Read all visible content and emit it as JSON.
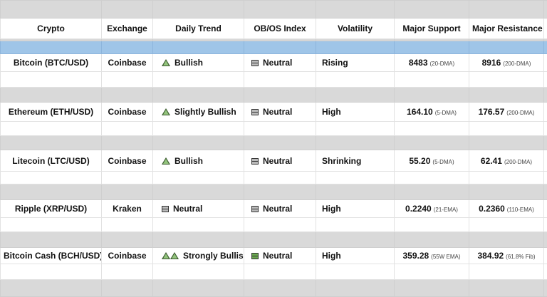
{
  "headers": [
    "Crypto",
    "Exchange",
    "Daily Trend",
    "OB/OS Index",
    "Volatility",
    "Major Support",
    "Major Resistance"
  ],
  "rows": [
    {
      "crypto": "Bitcoin (BTC/USD)",
      "exchange": "Coinbase",
      "trend": "Bullish",
      "trend_icon": "triangle-up-icon",
      "obos": "Neutral",
      "volatility": "Rising",
      "support": "8483",
      "support_note": "(20-DMA)",
      "resistance": "8916",
      "resistance_note": "(200-DMA)"
    },
    {
      "crypto": "Ethereum (ETH/USD)",
      "exchange": "Coinbase",
      "trend": "Slightly Bullish",
      "trend_icon": "triangle-up-icon",
      "obos": "Neutral",
      "volatility": "High",
      "support": "164.10",
      "support_note": "(5-DMA)",
      "resistance": "176.57",
      "resistance_note": "(200-DMA)"
    },
    {
      "crypto": "Litecoin (LTC/USD)",
      "exchange": "Coinbase",
      "trend": "Bullish",
      "trend_icon": "triangle-up-icon",
      "obos": "Neutral",
      "volatility": "Shrinking",
      "support": "55.20",
      "support_note": "(5-DMA)",
      "resistance": "62.41",
      "resistance_note": "(200-DMA)"
    },
    {
      "crypto": "Ripple (XRP/USD)",
      "exchange": "Kraken",
      "trend": "Neutral",
      "trend_icon": "neutral-bars-icon",
      "obos": "Neutral",
      "volatility": "High",
      "support": "0.2240",
      "support_note": "(21-EMA)",
      "resistance": "0.2360",
      "resistance_note": "(110-EMA)"
    },
    {
      "crypto": "Bitcoin Cash (BCH/USD)",
      "exchange": "Coinbase",
      "trend": "Strongly Bullish",
      "trend_icon": "double-triangle-up-icon",
      "obos": "Neutral",
      "volatility": "High",
      "support": "359.28",
      "support_note": "(55W EMA)",
      "resistance": "384.92",
      "resistance_note": "(61.8% Fib)"
    }
  ],
  "colors": {
    "header_band": "#9fc5e8",
    "gray_band": "#d9d9d9",
    "bullish_green": "#93c47d"
  }
}
